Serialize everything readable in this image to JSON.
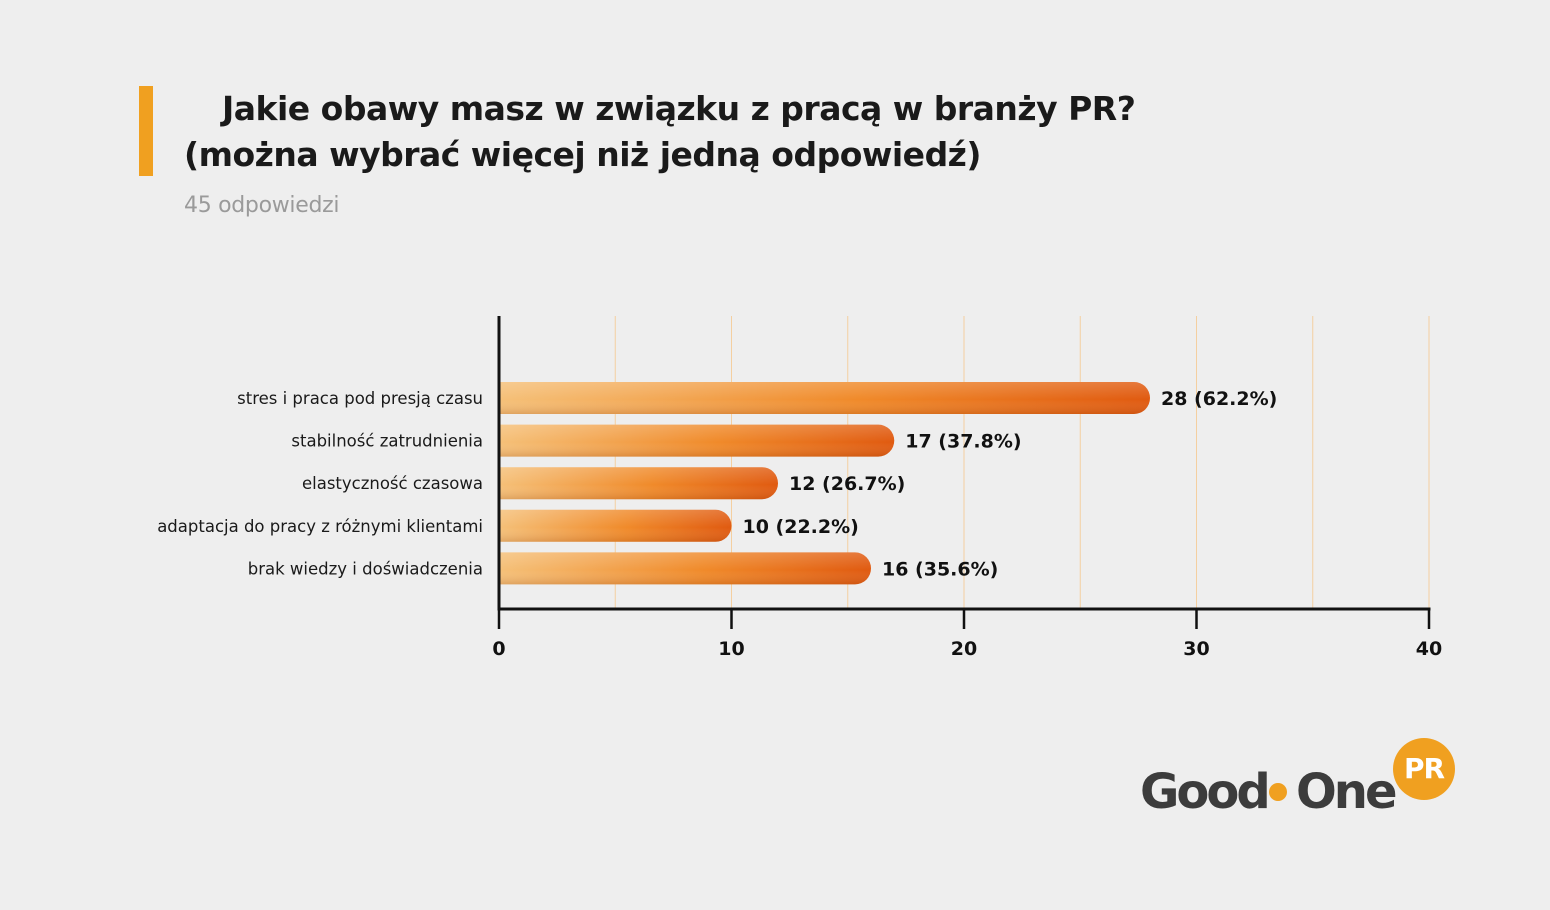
{
  "colors": {
    "accent": "#f0a020",
    "bar_start": "#f5c078",
    "bar_mid": "#f08a2a",
    "bar_end": "#e05a10",
    "grid": "#f4cfa0",
    "axis": "#111111",
    "logo_text": "#3c3c3c"
  },
  "header": {
    "title_line1": "Jakie obawy masz w związku z pracą w branży PR?",
    "title_line2": "(można wybrać więcej niż jedną odpowiedź)",
    "responses": "45 odpowiedzi"
  },
  "chart_data": {
    "type": "bar",
    "orientation": "horizontal",
    "categories": [
      "stres i praca pod presją czasu",
      "stabilność zatrudnienia",
      "elastyczność czasowa",
      "adaptacja do pracy z różnymi klientami",
      "brak wiedzy i doświadczenia"
    ],
    "values": [
      28,
      17,
      12,
      10,
      16
    ],
    "value_labels": [
      "28 (62.2%)",
      "17 (37.8%)",
      "12 (26.7%)",
      "10 (22.2%)",
      "16 (35.6%)"
    ],
    "xlim": [
      0,
      40
    ],
    "xticks": [
      0,
      10,
      20,
      30,
      40
    ],
    "xtick_labels": [
      "0",
      "10",
      "20",
      "30",
      "40"
    ],
    "minor_grid_step": 5,
    "grid": true,
    "legend": "none"
  },
  "logo": {
    "word1": "Good",
    "word2": "One",
    "badge": "PR",
    "icon": "orange-dot"
  }
}
